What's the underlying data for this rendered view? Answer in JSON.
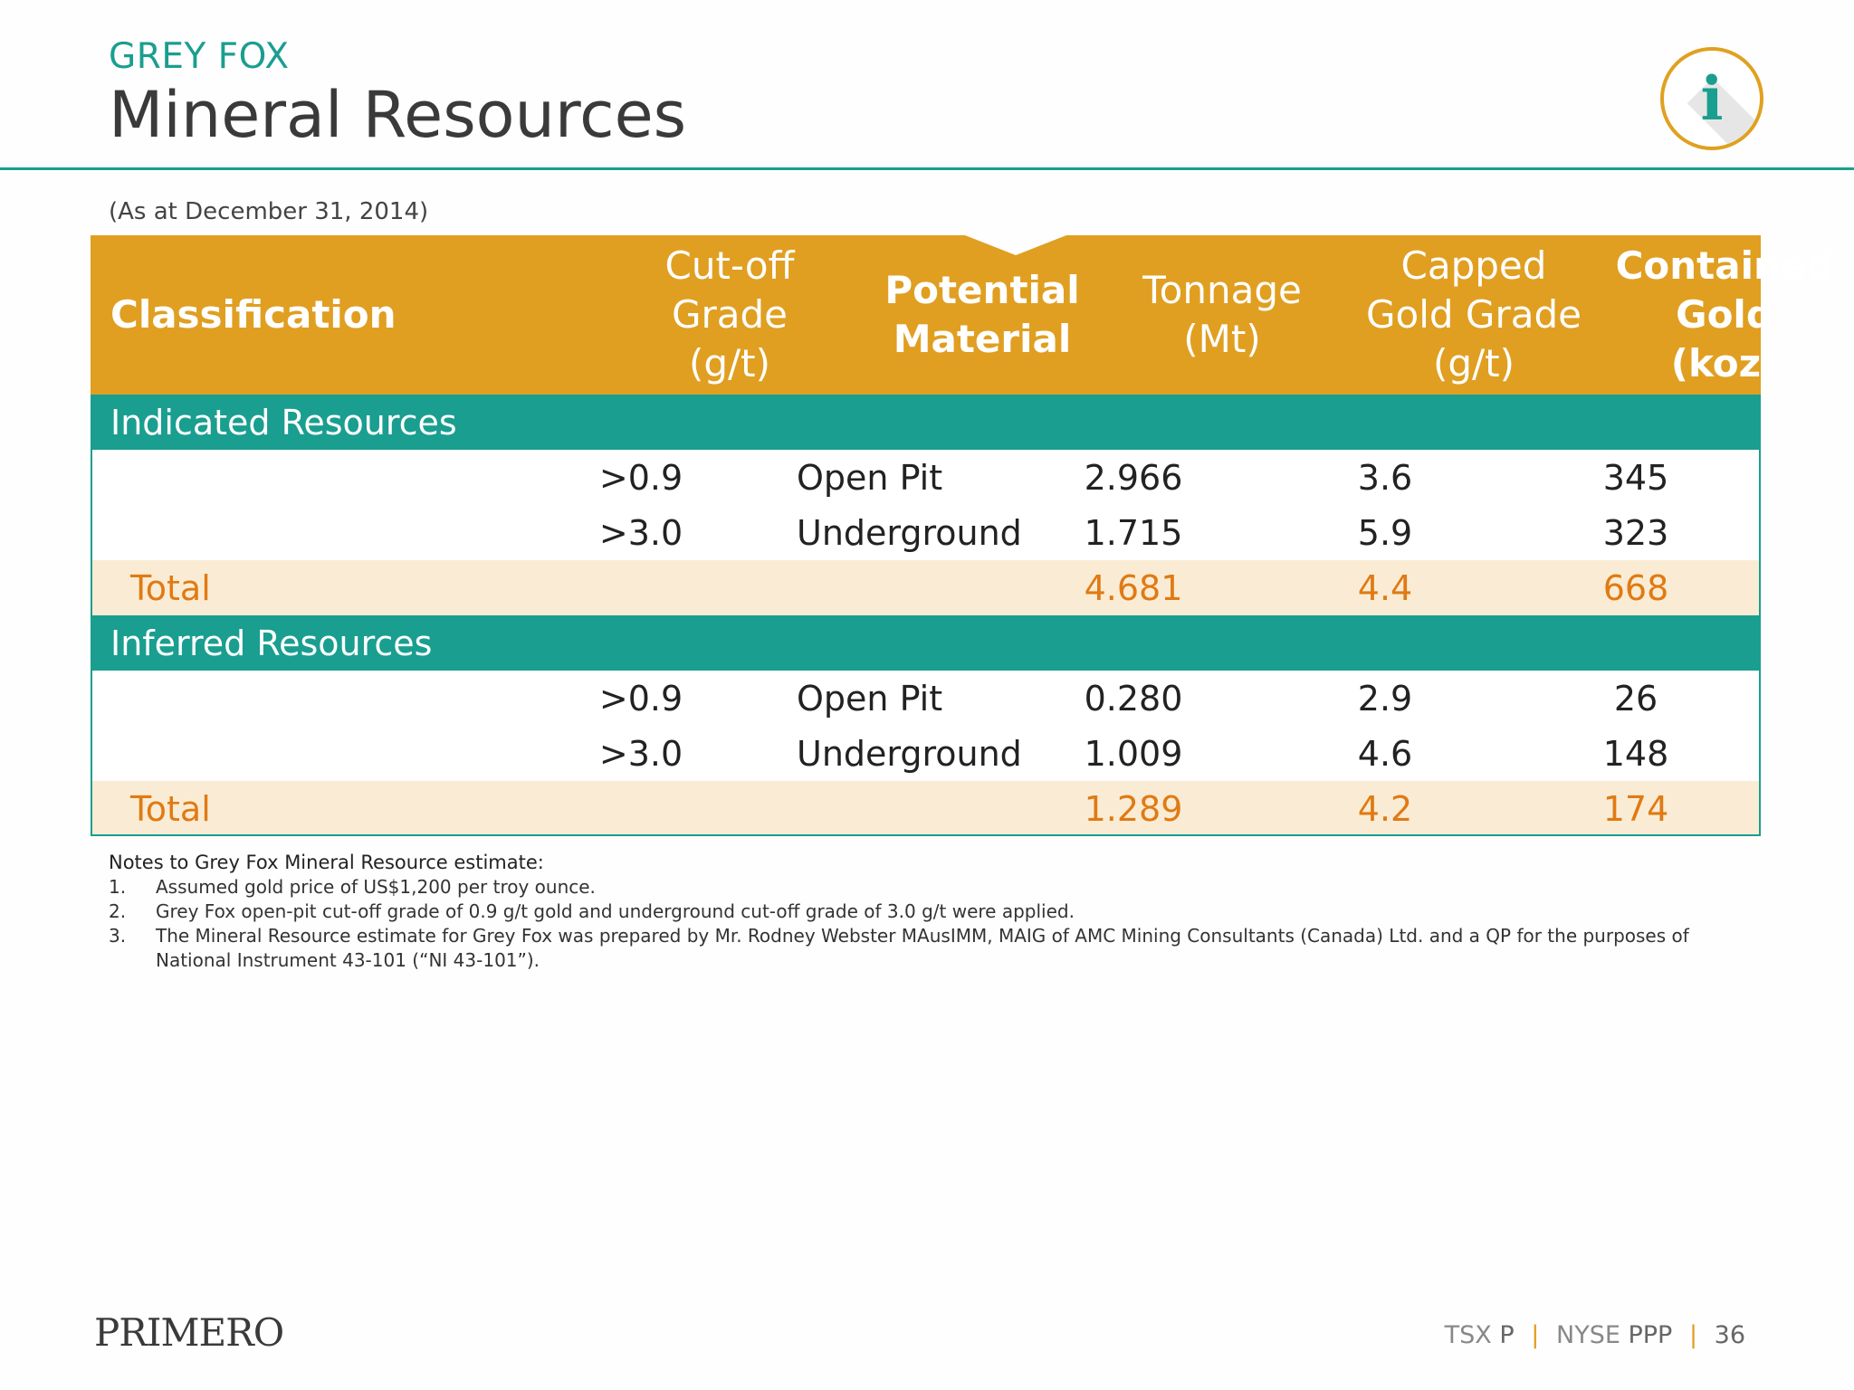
{
  "kicker": "GREY FOX",
  "title": "Mineral Resources",
  "as_at": "(As at December 31, 2014)",
  "info_icon": "info-icon",
  "colors": {
    "teal": "#1a9e8f",
    "gold": "#e09f21",
    "total_text": "#e07a14",
    "total_bg": "#faecd4"
  },
  "table": {
    "headers": {
      "classification": "Classification",
      "cutoff_1": "Cut-off Grade",
      "cutoff_2": "(g/t)",
      "potential_1": "Potential",
      "potential_2": "Material",
      "tonnage_1": "Tonnage",
      "tonnage_2": "(Mt)",
      "capped_1": "Capped",
      "capped_2": "Gold Grade",
      "capped_3": "(g/t)",
      "contained_1": "Contained",
      "contained_2": "Gold",
      "contained_3": "(koz)"
    },
    "indicated": {
      "label": "Indicated Resources",
      "rows": [
        {
          "cutoff": ">0.9",
          "material": "Open Pit",
          "tonnage": "2.966",
          "grade": "3.6",
          "gold": "345"
        },
        {
          "cutoff": ">3.0",
          "material": "Underground",
          "tonnage": "1.715",
          "grade": "5.9",
          "gold": "323"
        }
      ],
      "total": {
        "label": "Total",
        "tonnage": "4.681",
        "grade": "4.4",
        "gold": "668"
      }
    },
    "inferred": {
      "label": "Inferred Resources",
      "rows": [
        {
          "cutoff": ">0.9",
          "material": "Open Pit",
          "tonnage": "0.280",
          "grade": "2.9",
          "gold": "26"
        },
        {
          "cutoff": ">3.0",
          "material": "Underground",
          "tonnage": "1.009",
          "grade": "4.6",
          "gold": "148"
        }
      ],
      "total": {
        "label": "Total",
        "tonnage": "1.289",
        "grade": "4.2",
        "gold": "174"
      }
    }
  },
  "notes": {
    "heading": "Notes to Grey Fox Mineral Resource estimate:",
    "items": [
      {
        "num": "1.",
        "text": "Assumed gold price of US$1,200 per troy ounce."
      },
      {
        "num": "2.",
        "text": "Grey Fox open-pit cut-off grade of 0.9 g/t gold and underground cut-off grade of 3.0 g/t were applied."
      },
      {
        "num": "3.",
        "text": "The Mineral Resource estimate for Grey Fox was prepared by Mr. Rodney Webster MAusIMM, MAIG of AMC Mining Consultants (Canada) Ltd. and a QP for the purposes of National Instrument 43-101 (“NI 43-101”)."
      }
    ]
  },
  "logo": "PRIMERO",
  "footer": {
    "tsx": "TSX",
    "tsx_sym": "P",
    "sep": "|",
    "nyse": "NYSE",
    "nyse_sym": "PPP",
    "page": "36"
  }
}
